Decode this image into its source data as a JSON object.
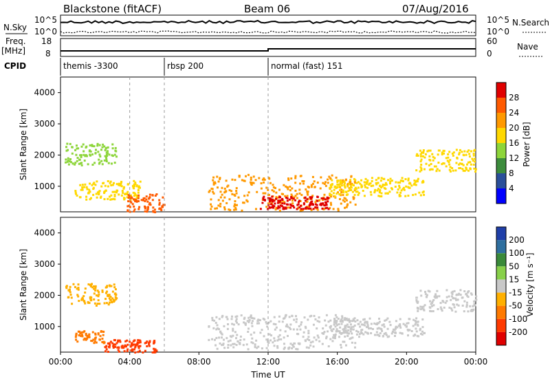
{
  "header": {
    "station": "Blackstone (fitACF)",
    "beam": "Beam 06",
    "date": "07/Aug/2016"
  },
  "top_panels": {
    "nsky_label": "N.Sky",
    "nsearch_label": "N.Search",
    "freq_label_1": "Freq.",
    "freq_label_2": "[MHz]",
    "nave_label": "Nave",
    "cpid_label": "CPID",
    "left_axis_nsky": [
      "10^5",
      "10^0"
    ],
    "right_axis_nsky": [
      "10^5",
      "10^0"
    ],
    "left_axis_freq": [
      "18",
      "8"
    ],
    "right_axis_nave": [
      "60",
      "0"
    ]
  },
  "cpid_segments": [
    {
      "label": "themis -3300",
      "start_hour": 0
    },
    {
      "label": "rbsp 200",
      "start_hour": 6
    },
    {
      "label": "normal (fast) 151",
      "start_hour": 12
    }
  ],
  "power_colorbar": {
    "label": "Power [dB]",
    "ticks": [
      "28",
      "24",
      "20",
      "16",
      "12",
      "8",
      "4"
    ],
    "colors": [
      "#e00000",
      "#ff5a00",
      "#ff9900",
      "#ffd800",
      "#8dd53a",
      "#3c8c3c",
      "#2a4f9a",
      "#0000ff"
    ]
  },
  "velocity_colorbar": {
    "label": "Velocity [m s⁻¹]",
    "ticks": [
      "200",
      "100",
      "50",
      "15",
      "-15",
      "-50",
      "-100",
      "-200"
    ],
    "colors": [
      "#1f3fa8",
      "#2f6f9f",
      "#3a8a3a",
      "#88d04a",
      "#c8c8c8",
      "#ffb000",
      "#ff7a00",
      "#ff3a00",
      "#e00000"
    ]
  },
  "axes": {
    "ylabel": "Slant Range [km]",
    "xlabel": "Time UT",
    "yticks": [
      "4000",
      "3000",
      "2000",
      "1000"
    ],
    "xticks": [
      "00:00",
      "04:00",
      "08:00",
      "12:00",
      "16:00",
      "20:00",
      "00:00"
    ]
  },
  "chart_data": {
    "type": "heatmap",
    "title": "Blackstone (fitACF)",
    "xlabel": "Time UT",
    "ylabel": "Slant Range [km]",
    "xlim_hours": [
      0,
      24
    ],
    "ylim_km": [
      180,
      4500
    ],
    "power_scatter_regions": [
      {
        "t_start": 0.2,
        "t_end": 3.2,
        "r_start": 1700,
        "r_end": 2400,
        "power_db": 10
      },
      {
        "t_start": 0.8,
        "t_end": 4.6,
        "r_start": 600,
        "r_end": 1200,
        "power_db": 14
      },
      {
        "t_start": 3.8,
        "t_end": 6.0,
        "r_start": 200,
        "r_end": 800,
        "power_db": 22
      },
      {
        "t_start": 8.5,
        "t_end": 17.0,
        "r_start": 250,
        "r_end": 1400,
        "power_db": 18
      },
      {
        "t_start": 11.5,
        "t_end": 15.5,
        "r_start": 300,
        "r_end": 700,
        "power_db": 28
      },
      {
        "t_start": 15.5,
        "t_end": 21.0,
        "r_start": 700,
        "r_end": 1300,
        "power_db": 14
      },
      {
        "t_start": 20.5,
        "t_end": 24.0,
        "r_start": 1500,
        "r_end": 2200,
        "power_db": 16
      }
    ],
    "velocity_scatter_regions": [
      {
        "t_start": 0.2,
        "t_end": 3.2,
        "r_start": 1700,
        "r_end": 2400,
        "velocity": -30
      },
      {
        "t_start": 0.8,
        "t_end": 2.5,
        "r_start": 500,
        "r_end": 900,
        "velocity": -80
      },
      {
        "t_start": 2.5,
        "t_end": 5.5,
        "r_start": 200,
        "r_end": 600,
        "velocity": -150
      },
      {
        "t_start": 8.5,
        "t_end": 17.0,
        "r_start": 300,
        "r_end": 1400,
        "velocity": 0
      },
      {
        "t_start": 15.5,
        "t_end": 21.0,
        "r_start": 700,
        "r_end": 1300,
        "velocity": 0
      },
      {
        "t_start": 20.5,
        "t_end": 24.0,
        "r_start": 1500,
        "r_end": 2200,
        "velocity": 0
      }
    ],
    "dashed_markers_hours": [
      4,
      6,
      12
    ]
  }
}
